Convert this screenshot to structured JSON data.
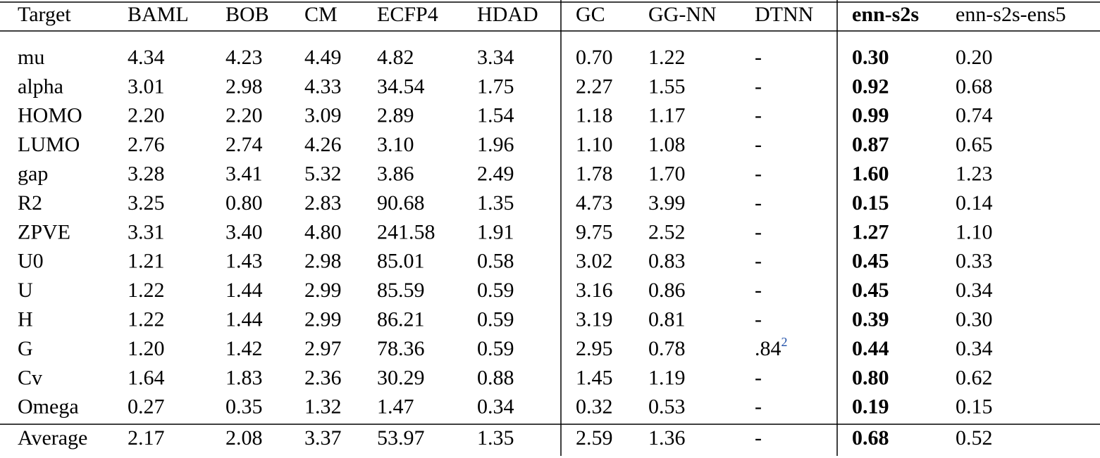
{
  "table": {
    "header": [
      "Target",
      "BAML",
      "BOB",
      "CM",
      "ECFP4",
      "HDAD",
      "GC",
      "GG-NN",
      "DTNN",
      "enn-s2s",
      "enn-s2s-ens5"
    ],
    "rows": [
      [
        "mu",
        "4.34",
        "4.23",
        "4.49",
        "4.82",
        "3.34",
        "0.70",
        "1.22",
        "-",
        "0.30",
        "0.20"
      ],
      [
        "alpha",
        "3.01",
        "2.98",
        "4.33",
        "34.54",
        "1.75",
        "2.27",
        "1.55",
        "-",
        "0.92",
        "0.68"
      ],
      [
        "HOMO",
        "2.20",
        "2.20",
        "3.09",
        "2.89",
        "1.54",
        "1.18",
        "1.17",
        "-",
        "0.99",
        "0.74"
      ],
      [
        "LUMO",
        "2.76",
        "2.74",
        "4.26",
        "3.10",
        "1.96",
        "1.10",
        "1.08",
        "-",
        "0.87",
        "0.65"
      ],
      [
        "gap",
        "3.28",
        "3.41",
        "5.32",
        "3.86",
        "2.49",
        "1.78",
        "1.70",
        "-",
        "1.60",
        "1.23"
      ],
      [
        "R2",
        "3.25",
        "0.80",
        "2.83",
        "90.68",
        "1.35",
        "4.73",
        "3.99",
        "-",
        "0.15",
        "0.14"
      ],
      [
        "ZPVE",
        "3.31",
        "3.40",
        "4.80",
        "241.58",
        "1.91",
        "9.75",
        "2.52",
        "-",
        "1.27",
        "1.10"
      ],
      [
        "U0",
        "1.21",
        "1.43",
        "2.98",
        "85.01",
        "0.58",
        "3.02",
        "0.83",
        "-",
        "0.45",
        "0.33"
      ],
      [
        "U",
        "1.22",
        "1.44",
        "2.99",
        "85.59",
        "0.59",
        "3.16",
        "0.86",
        "-",
        "0.45",
        "0.34"
      ],
      [
        "H",
        "1.22",
        "1.44",
        "2.99",
        "86.21",
        "0.59",
        "3.19",
        "0.81",
        "-",
        "0.39",
        "0.30"
      ],
      [
        "G",
        "1.20",
        "1.42",
        "2.97",
        "78.36",
        "0.59",
        "2.95",
        "0.78",
        {
          "text": ".84",
          "sup": "2"
        },
        "0.44",
        "0.34"
      ],
      [
        "Cv",
        "1.64",
        "1.83",
        "2.36",
        "30.29",
        "0.88",
        "1.45",
        "1.19",
        "-",
        "0.80",
        "0.62"
      ],
      [
        "Omega",
        "0.27",
        "0.35",
        "1.32",
        "1.47",
        "0.34",
        "0.32",
        "0.53",
        "-",
        "0.19",
        "0.15"
      ]
    ],
    "average": [
      "Average",
      "2.17",
      "2.08",
      "3.37",
      "53.97",
      "1.35",
      "2.59",
      "1.36",
      "-",
      "0.68",
      "0.52"
    ]
  }
}
